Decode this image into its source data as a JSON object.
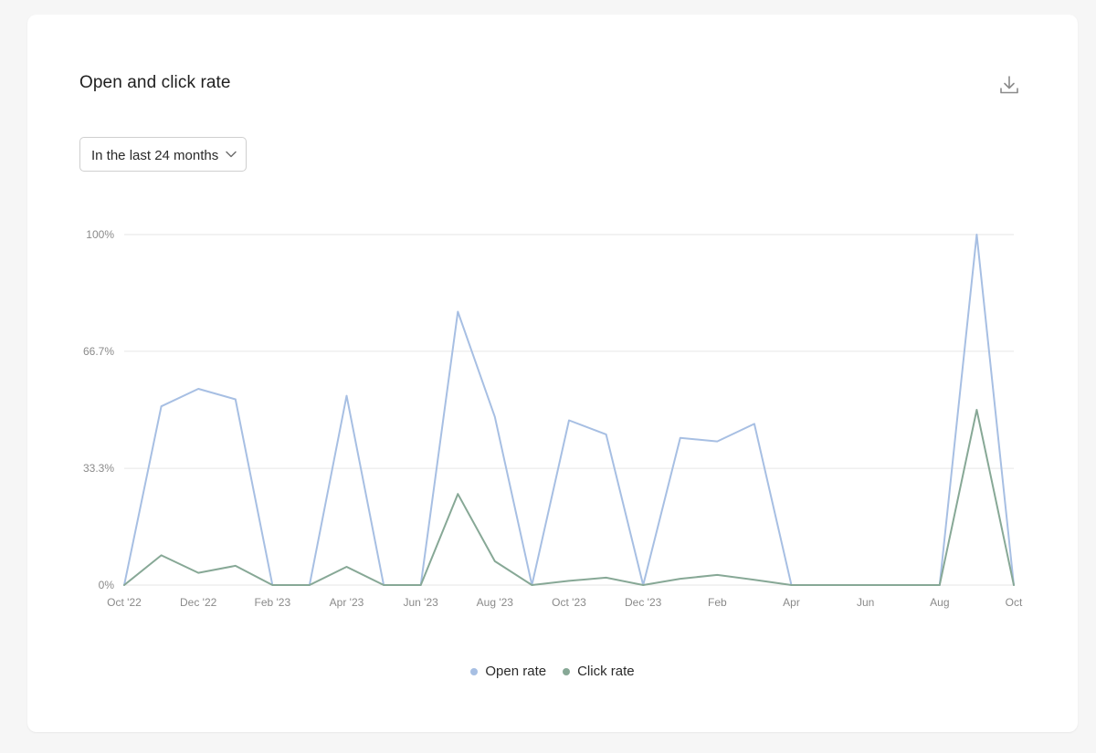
{
  "card": {
    "title": "Open and click rate"
  },
  "toolbar": {
    "download_icon": "download-icon"
  },
  "range_select": {
    "selected": "In the last 24 months",
    "icon": "chevron-down-icon"
  },
  "colors": {
    "open_rate": "#a7bfe3",
    "click_rate": "#87a896",
    "grid": "#e6e6e6",
    "axis_text": "#8a8a8a"
  },
  "chart_data": {
    "type": "line",
    "title": "Open and click rate",
    "x": [
      "Oct '22",
      "Nov '22",
      "Dec '22",
      "Jan '23",
      "Feb '23",
      "Mar '23",
      "Apr '23",
      "May '23",
      "Jun '23",
      "Jul '23",
      "Aug '23",
      "Sep '23",
      "Oct '23",
      "Nov '23",
      "Dec '23",
      "Jan '24",
      "Feb '24",
      "Mar '24",
      "Apr '24",
      "May '24",
      "Jun '24",
      "Jul '24",
      "Aug '24",
      "Sep '24",
      "Oct '24"
    ],
    "x_tick_labels": [
      "Oct '22",
      "",
      "Dec '22",
      "",
      "Feb '23",
      "",
      "Apr '23",
      "",
      "Jun '23",
      "",
      "Aug '23",
      "",
      "Oct '23",
      "",
      "Dec '23",
      "",
      "Feb",
      "",
      "Apr",
      "",
      "Jun",
      "",
      "Aug",
      "",
      "Oct"
    ],
    "y_tick_labels": [
      "0%",
      "33.3%",
      "66.7%",
      "100%"
    ],
    "y_ticks": [
      0,
      33.3,
      66.7,
      100
    ],
    "ylim": [
      0,
      100
    ],
    "grid": true,
    "legend_position": "bottom-center",
    "series": [
      {
        "name": "Open rate",
        "values": [
          0,
          51,
          56,
          53,
          0,
          0,
          54,
          0,
          0,
          78,
          48,
          0,
          47,
          43,
          0,
          42,
          41,
          46,
          0,
          0,
          0,
          0,
          0,
          100,
          0
        ]
      },
      {
        "name": "Click rate",
        "values": [
          0,
          8.5,
          3.5,
          5.5,
          0,
          0,
          5.2,
          0,
          0,
          26,
          6.8,
          0,
          1.2,
          2.1,
          0,
          1.8,
          2.9,
          1.5,
          0,
          0,
          0,
          0,
          0,
          50,
          0
        ]
      }
    ]
  }
}
